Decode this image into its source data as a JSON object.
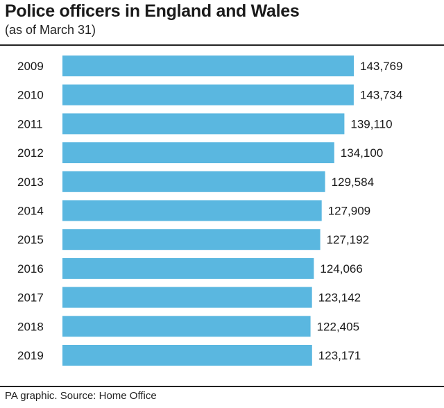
{
  "header": {
    "title": "Police officers in England and Wales",
    "subtitle": "(as of March 31)"
  },
  "footer": {
    "source": "PA graphic. Source: Home Office"
  },
  "colors": {
    "bar": "#5ab7e0",
    "text": "#1a1a1a",
    "rule": "#222222"
  },
  "chart_data": {
    "type": "bar",
    "orientation": "horizontal",
    "title": "Police officers in England and Wales",
    "subtitle": "(as of March 31)",
    "categories": [
      "2009",
      "2010",
      "2011",
      "2012",
      "2013",
      "2014",
      "2015",
      "2016",
      "2017",
      "2018",
      "2019"
    ],
    "values": [
      143769,
      143734,
      139110,
      134100,
      129584,
      127909,
      127192,
      124066,
      123142,
      122405,
      123171
    ],
    "value_labels": [
      "143,769",
      "143,734",
      "139,110",
      "134,100",
      "129,584",
      "127,909",
      "127,192",
      "124,066",
      "123,142",
      "122,405",
      "123,171"
    ],
    "xlim": [
      0,
      143769
    ],
    "grid": false,
    "legend": "none"
  }
}
